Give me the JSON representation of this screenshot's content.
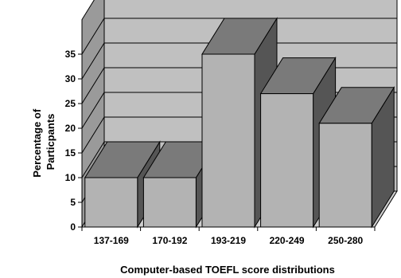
{
  "chart_data": {
    "type": "bar",
    "title": "",
    "xlabel": "Computer-based TOEFL score distributions",
    "ylabel_lines": [
      "Percentage of",
      "Particpants"
    ],
    "categories": [
      "137-169",
      "170-192",
      "193-219",
      "220-249",
      "250-280"
    ],
    "values": [
      10,
      10,
      35,
      27,
      21
    ],
    "ylim": [
      0,
      35
    ],
    "yticks": [
      0,
      5,
      10,
      15,
      20,
      25,
      30,
      35
    ],
    "grid": true,
    "three_d": true,
    "legend": "none",
    "colors": {
      "bar_front": "#b3b3b3",
      "bar_top": "#7a7a7a",
      "bar_side": "#555555",
      "back_wall": "#c0c0c0",
      "side_wall": "#9a9a9a",
      "floor": "#cfcfcf"
    }
  }
}
